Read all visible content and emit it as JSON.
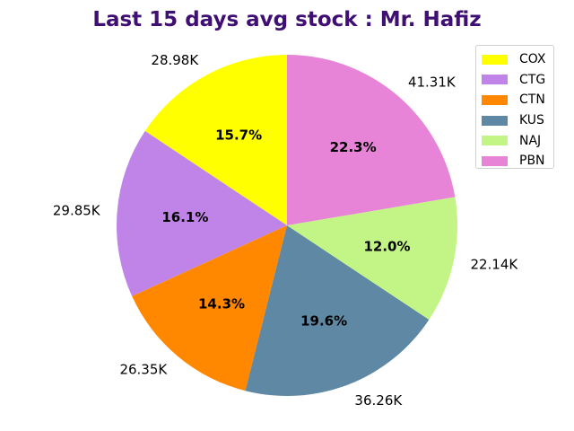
{
  "chart_data": {
    "type": "pie",
    "title": "Last 15 days avg stock : Mr. Hafiz",
    "start_angle_deg": 90,
    "direction": "counterclockwise",
    "slices": [
      {
        "label": "COX",
        "value": 28.98,
        "value_label": "28.98K",
        "pct_label": "15.7%",
        "color": "#ffff00"
      },
      {
        "label": "CTG",
        "value": 29.85,
        "value_label": "29.85K",
        "pct_label": "16.1%",
        "color": "#c084e8"
      },
      {
        "label": "CTN",
        "value": 26.35,
        "value_label": "26.35K",
        "pct_label": "14.3%",
        "color": "#ff8800"
      },
      {
        "label": "KUS",
        "value": 36.26,
        "value_label": "36.26K",
        "pct_label": "19.6%",
        "color": "#5e88a3"
      },
      {
        "label": "NAJ",
        "value": 22.14,
        "value_label": "22.14K",
        "pct_label": "12.0%",
        "color": "#c2f586"
      },
      {
        "label": "PBN",
        "value": 41.31,
        "value_label": "41.31K",
        "pct_label": "22.3%",
        "color": "#e884d8"
      }
    ],
    "legend_position": "top-right",
    "title_color": "#3f0f73"
  }
}
